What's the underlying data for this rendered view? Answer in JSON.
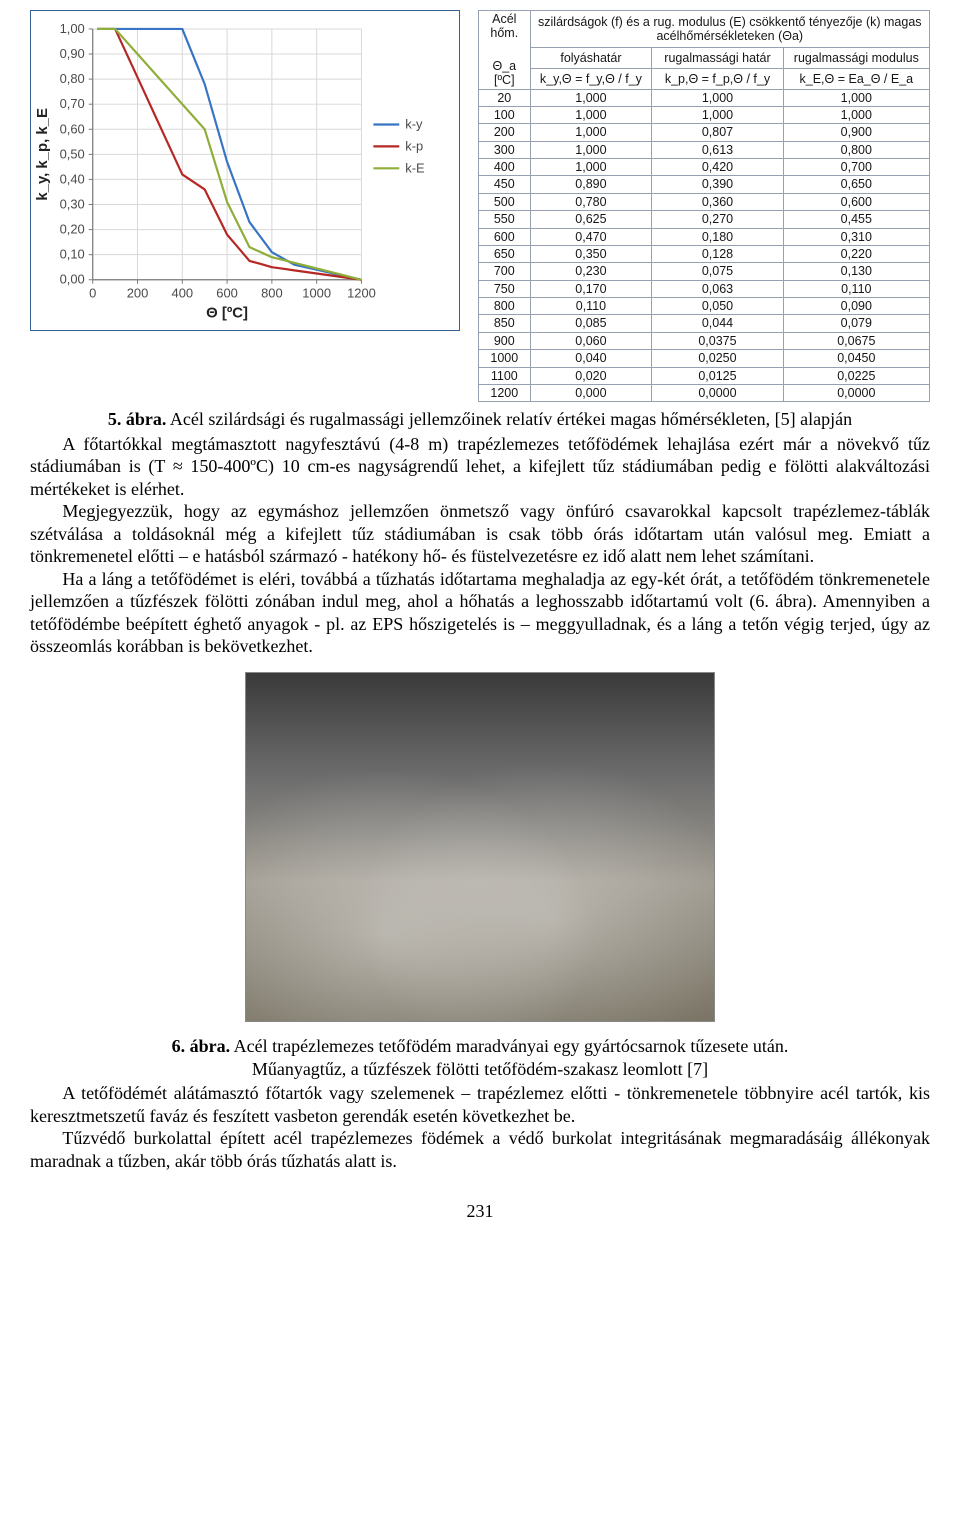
{
  "chart": {
    "type": "line",
    "title": "",
    "xlabel": "Θ [ºC]",
    "ylabel": "k_y, k_p, k_E",
    "xlim": [
      0,
      1200
    ],
    "ylim": [
      0.0,
      1.0
    ],
    "xtick_step": 200,
    "ytick_step": 0.1,
    "xticks_labels": [
      "0",
      "200",
      "400",
      "600",
      "800",
      "1000",
      "1200"
    ],
    "yticks_labels": [
      "0,00",
      "0,10",
      "0,20",
      "0,30",
      "0,40",
      "0,50",
      "0,60",
      "0,70",
      "0,80",
      "0,90",
      "1,00"
    ],
    "background_color": "#ffffff",
    "grid_color": "#d8d8d8",
    "axis_color": "#7a7a7a",
    "axis_fontsize": 13,
    "label_fontsize": 15,
    "legend_fontsize": 13,
    "line_width": 2.2,
    "border_color": "#356094",
    "legend": {
      "position": "right",
      "items": [
        {
          "label": "k-y",
          "color": "#3874c4"
        },
        {
          "label": "k-p",
          "color": "#b52824"
        },
        {
          "label": "k-E",
          "color": "#8fae39"
        }
      ]
    },
    "series": [
      {
        "name": "k-y",
        "color": "#3874c4",
        "x": [
          20,
          100,
          200,
          300,
          400,
          450,
          500,
          550,
          600,
          650,
          700,
          750,
          800,
          850,
          900,
          1000,
          1100,
          1200
        ],
        "y": [
          1.0,
          1.0,
          1.0,
          1.0,
          1.0,
          0.89,
          0.78,
          0.625,
          0.47,
          0.35,
          0.23,
          0.17,
          0.11,
          0.085,
          0.06,
          0.04,
          0.02,
          0.0
        ]
      },
      {
        "name": "k-p",
        "color": "#b52824",
        "x": [
          20,
          100,
          200,
          300,
          400,
          450,
          500,
          550,
          600,
          650,
          700,
          750,
          800,
          850,
          900,
          1000,
          1100,
          1200
        ],
        "y": [
          1.0,
          1.0,
          0.807,
          0.613,
          0.42,
          0.39,
          0.36,
          0.27,
          0.18,
          0.128,
          0.075,
          0.063,
          0.05,
          0.044,
          0.0375,
          0.025,
          0.0125,
          0.0
        ]
      },
      {
        "name": "k-E",
        "color": "#8fae39",
        "x": [
          20,
          100,
          200,
          300,
          400,
          450,
          500,
          550,
          600,
          650,
          700,
          750,
          800,
          850,
          900,
          1000,
          1100,
          1200
        ],
        "y": [
          1.0,
          1.0,
          0.9,
          0.8,
          0.7,
          0.65,
          0.6,
          0.455,
          0.31,
          0.22,
          0.13,
          0.11,
          0.09,
          0.079,
          0.0675,
          0.045,
          0.0225,
          0.0
        ]
      }
    ]
  },
  "table": {
    "header_top_left": "Acél hőm.",
    "header_top_right": "szilárdságok (f) és a rug. modulus (E) csökkentő tényezője (k) magas acélhőmérsékleteken (Θa)",
    "header_row2_col1": "folyáshatár",
    "header_row2_col2": "rugalmassági határ",
    "header_row2_col3": "rugalmassági modulus",
    "header_col0": "Θ_a [ºC]",
    "header_col1": "k_y,Θ = f_y,Θ / f_y",
    "header_col2": "k_p,Θ = f_p,Θ / f_y",
    "header_col3": "k_E,Θ = Ea_Θ / E_a",
    "rows": [
      [
        "20",
        "1,000",
        "1,000",
        "1,000"
      ],
      [
        "100",
        "1,000",
        "1,000",
        "1,000"
      ],
      [
        "200",
        "1,000",
        "0,807",
        "0,900"
      ],
      [
        "300",
        "1,000",
        "0,613",
        "0,800"
      ],
      [
        "400",
        "1,000",
        "0,420",
        "0,700"
      ],
      [
        "450",
        "0,890",
        "0,390",
        "0,650"
      ],
      [
        "500",
        "0,780",
        "0,360",
        "0,600"
      ],
      [
        "550",
        "0,625",
        "0,270",
        "0,455"
      ],
      [
        "600",
        "0,470",
        "0,180",
        "0,310"
      ],
      [
        "650",
        "0,350",
        "0,128",
        "0,220"
      ],
      [
        "700",
        "0,230",
        "0,075",
        "0,130"
      ],
      [
        "750",
        "0,170",
        "0,063",
        "0,110"
      ],
      [
        "800",
        "0,110",
        "0,050",
        "0,090"
      ],
      [
        "850",
        "0,085",
        "0,044",
        "0,079"
      ],
      [
        "900",
        "0,060",
        "0,0375",
        "0,0675"
      ],
      [
        "1000",
        "0,040",
        "0,0250",
        "0,0450"
      ],
      [
        "1100",
        "0,020",
        "0,0125",
        "0,0225"
      ],
      [
        "1200",
        "0,000",
        "0,0000",
        "0,0000"
      ]
    ]
  },
  "fig5": {
    "num": "5. ábra.",
    "caption": "Acél szilárdsági és rugalmassági jellemzőinek relatív értékei magas hőmérsékleten, [5] alapján"
  },
  "para1": "A főtartókkal megtámasztott nagyfesztávú (4-8 m) trapézlemezes tetőfödémek lehajlása ezért már a növekvő tűz stádiumában is (T ≈ 150-400ºC) 10 cm-es nagyságrendű lehet, a kifejlett tűz stádiumában pedig e fölötti alakváltozási mértékeket is elérhet.",
  "para2": "Megjegyezzük, hogy az egymáshoz jellemzően önmetsző vagy önfúró csavarokkal kapcsolt trapézlemez-táblák szétválása a toldásoknál még a kifejlett tűz stádiumában is csak több órás időtartam után valósul meg. Emiatt a tönkremenetel előtti – e hatásból származó - hatékony hő- és füstelvezetésre ez idő alatt nem lehet számítani.",
  "para3": "Ha a láng a tetőfödémet is eléri, továbbá a tűzhatás időtartama meghaladja az egy-két órát, a tetőfödém tönkremenetele jellemzően a tűzfészek fölötti zónában indul meg, ahol a hőhatás a leghosszabb időtartamú volt (6. ábra). Amennyiben a tetőfödémbe beépített éghető anyagok - pl. az EPS hőszigetelés is – meggyulladnak, és a láng a tetőn végig terjed, úgy az összeomlás korábban is bekövetkezhet.",
  "fig6": {
    "num": "6. ábra.",
    "caption_line1": "Acél trapézlemezes tetőfödém maradványai egy gyártócsarnok tűzesete után.",
    "caption_line2": "Műanyagtűz, a tűzfészek fölötti tetőfödém-szakasz leomlott [7]"
  },
  "para4": "A tetőfödémét alátámasztó főtartók vagy szelemenek – trapézlemez előtti - tönkremenetele többnyire acél tartók, kis keresztmetszetű faváz és feszített vasbeton gerendák esetén következhet be.",
  "para5": "Tűzvédő burkolattal épített acél trapézlemezes födémek a védő burkolat integritásának megmaradásáig állékonyak maradnak a tűzben, akár több órás tűzhatás alatt is.",
  "page_number": "231"
}
